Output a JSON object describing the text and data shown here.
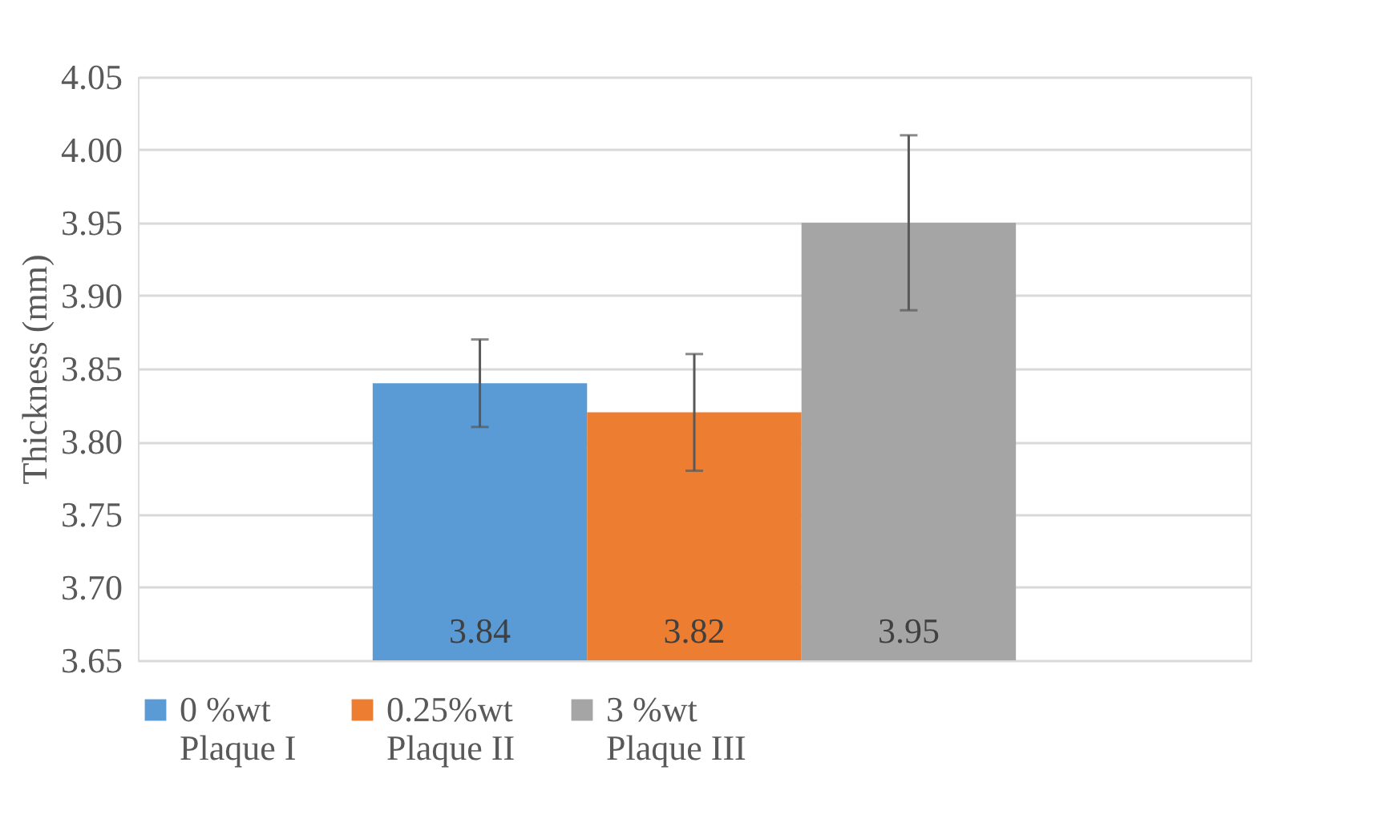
{
  "chart_data": {
    "type": "bar",
    "ylabel": "Thickness (mm)",
    "categories": [
      null
    ],
    "series": [
      {
        "name": "0 %wt\nPlaque I",
        "color": "#5b9bd5",
        "values": [
          3.84
        ],
        "errors": [
          [
            3.81,
            3.87
          ]
        ]
      },
      {
        "name": "0.25%wt\nPlaque II",
        "color": "#ed7d31",
        "values": [
          3.82
        ],
        "errors": [
          [
            3.78,
            3.86
          ]
        ]
      },
      {
        "name": "3 %wt\nPlaque III",
        "color": "#a5a5a5",
        "values": [
          3.95
        ],
        "errors": [
          [
            3.89,
            4.01
          ]
        ]
      }
    ],
    "ylim": [
      3.65,
      4.05
    ],
    "yticks": [
      3.65,
      {
        "value": 3.7,
        "label": "3.70"
      },
      3.75,
      {
        "value": 3.8,
        "label": "3.80"
      },
      3.85,
      {
        "value": 3.9,
        "label": "3.90"
      },
      3.95,
      {
        "value": 4.0,
        "label": "4.00"
      },
      4.05
    ],
    "grid": "y",
    "legend": "bottom",
    "data_labels": true
  }
}
